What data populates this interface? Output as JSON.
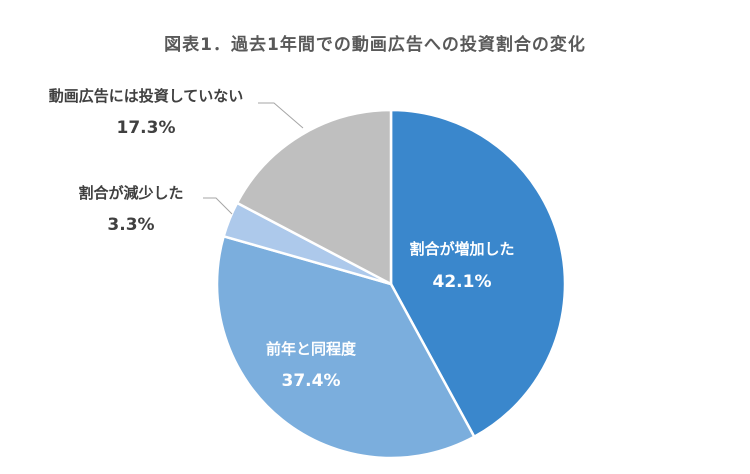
{
  "title": "図表1．過去1年間での動画広告への投資割合の変化",
  "colors": {
    "increase": "#3A87CC",
    "same": "#7BAEDD",
    "decrease": "#ADC9EB",
    "none": "#BFBFBF",
    "leader": "#A6A6A6"
  },
  "chart_data": {
    "type": "pie",
    "title": "図表1．過去1年間での動画広告への投資割合の変化",
    "slices": [
      {
        "label": "割合が増加した",
        "value": 42.1,
        "value_label": "42.1%"
      },
      {
        "label": "前年と同程度",
        "value": 37.4,
        "value_label": "37.4%"
      },
      {
        "label": "割合が減少した",
        "value": 3.3,
        "value_label": "3.3%"
      },
      {
        "label": "動画広告には投資していない",
        "value": 17.3,
        "value_label": "17.3%"
      }
    ]
  }
}
